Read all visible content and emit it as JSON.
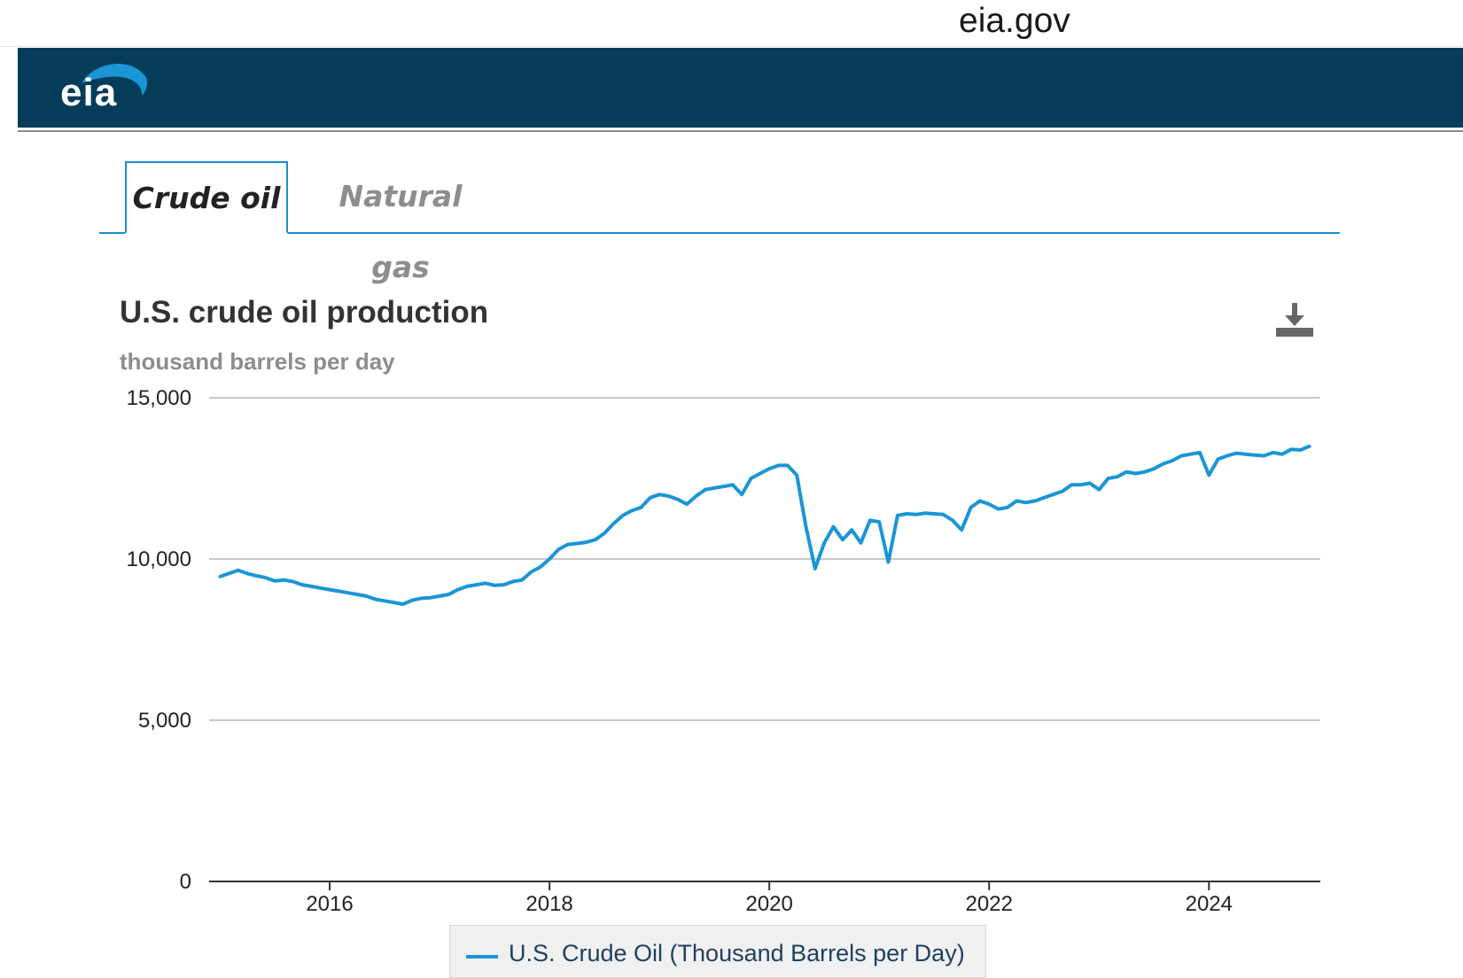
{
  "browser": {
    "url": "eia.gov"
  },
  "header": {
    "logo_text": "eia"
  },
  "tabs": [
    {
      "label": "Crude oil",
      "active": true
    },
    {
      "label": "Natural gas",
      "active": false
    }
  ],
  "colors": {
    "header_bg": "#043c5a",
    "accent": "#1a8fcf",
    "series": "#1a95d6"
  },
  "icons": {
    "download": "download-icon"
  },
  "chart_data": {
    "type": "line",
    "title": "U.S. crude oil production",
    "subtitle": "thousand barrels per day",
    "xlabel": "",
    "ylabel": "",
    "ylim": [
      0,
      15000
    ],
    "yticks": [
      0,
      5000,
      10000,
      15000
    ],
    "ytick_labels": [
      "0",
      "5,000",
      "10,000",
      "15,000"
    ],
    "xlim": [
      "2015-01",
      "2024-12"
    ],
    "xticks": [
      "2016",
      "2018",
      "2020",
      "2022",
      "2024"
    ],
    "grid": true,
    "legend_position": "bottom",
    "series": [
      {
        "name": "U.S. Crude Oil (Thousand Barrels per Day)",
        "x": [
          "2015-01",
          "2015-02",
          "2015-03",
          "2015-04",
          "2015-05",
          "2015-06",
          "2015-07",
          "2015-08",
          "2015-09",
          "2015-10",
          "2015-11",
          "2015-12",
          "2016-01",
          "2016-02",
          "2016-03",
          "2016-04",
          "2016-05",
          "2016-06",
          "2016-07",
          "2016-08",
          "2016-09",
          "2016-10",
          "2016-11",
          "2016-12",
          "2017-01",
          "2017-02",
          "2017-03",
          "2017-04",
          "2017-05",
          "2017-06",
          "2017-07",
          "2017-08",
          "2017-09",
          "2017-10",
          "2017-11",
          "2017-12",
          "2018-01",
          "2018-02",
          "2018-03",
          "2018-04",
          "2018-05",
          "2018-06",
          "2018-07",
          "2018-08",
          "2018-09",
          "2018-10",
          "2018-11",
          "2018-12",
          "2019-01",
          "2019-02",
          "2019-03",
          "2019-04",
          "2019-05",
          "2019-06",
          "2019-07",
          "2019-08",
          "2019-09",
          "2019-10",
          "2019-11",
          "2019-12",
          "2020-01",
          "2020-02",
          "2020-03",
          "2020-04",
          "2020-05",
          "2020-06",
          "2020-07",
          "2020-08",
          "2020-09",
          "2020-10",
          "2020-11",
          "2020-12",
          "2021-01",
          "2021-02",
          "2021-03",
          "2021-04",
          "2021-05",
          "2021-06",
          "2021-07",
          "2021-08",
          "2021-09",
          "2021-10",
          "2021-11",
          "2021-12",
          "2022-01",
          "2022-02",
          "2022-03",
          "2022-04",
          "2022-05",
          "2022-06",
          "2022-07",
          "2022-08",
          "2022-09",
          "2022-10",
          "2022-11",
          "2022-12",
          "2023-01",
          "2023-02",
          "2023-03",
          "2023-04",
          "2023-05",
          "2023-06",
          "2023-07",
          "2023-08",
          "2023-09",
          "2023-10",
          "2023-11",
          "2023-12",
          "2024-01",
          "2024-02",
          "2024-03",
          "2024-04",
          "2024-05",
          "2024-06",
          "2024-07",
          "2024-08",
          "2024-09",
          "2024-10",
          "2024-11",
          "2024-12"
        ],
        "values": [
          9450,
          9550,
          9650,
          9550,
          9480,
          9420,
          9320,
          9350,
          9300,
          9200,
          9150,
          9100,
          9050,
          9000,
          8950,
          8900,
          8850,
          8750,
          8700,
          8650,
          8600,
          8720,
          8780,
          8800,
          8850,
          8900,
          9050,
          9150,
          9200,
          9250,
          9180,
          9200,
          9300,
          9350,
          9600,
          9750,
          10000,
          10300,
          10450,
          10480,
          10520,
          10600,
          10800,
          11100,
          11350,
          11500,
          11600,
          11900,
          12000,
          11950,
          11850,
          11700,
          11950,
          12150,
          12200,
          12250,
          12300,
          12000,
          12500,
          12650,
          12800,
          12900,
          12900,
          12600,
          11000,
          9700,
          10500,
          11000,
          10600,
          10900,
          10500,
          11200,
          11150,
          9900,
          11350,
          11400,
          11380,
          11420,
          11400,
          11380,
          11200,
          10900,
          11600,
          11800,
          11700,
          11550,
          11600,
          11800,
          11750,
          11800,
          11900,
          12000,
          12100,
          12300,
          12300,
          12350,
          12150,
          12500,
          12550,
          12700,
          12650,
          12700,
          12800,
          12950,
          13050,
          13200,
          13250,
          13300,
          12600,
          13100,
          13200,
          13280,
          13250,
          13220,
          13200,
          13300,
          13250,
          13400,
          13380,
          13500
        ]
      }
    ]
  }
}
